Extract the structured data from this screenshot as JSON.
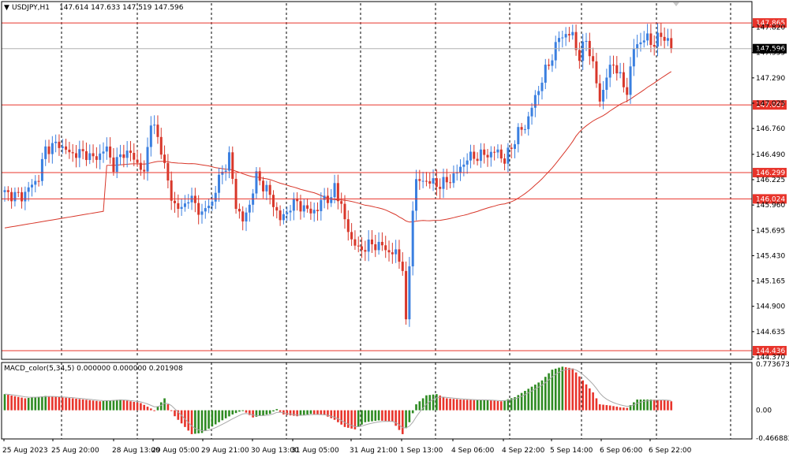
{
  "chart_data": [
    {
      "type": "candlestick",
      "symbol_header": "USDJPY,H1",
      "ohlc_header": "147.614 147.633 147.519 147.596",
      "ylim": [
        144.37,
        147.94
      ],
      "y_ticks": [
        "147.820",
        "147.555",
        "147.290",
        "147.025",
        "146.760",
        "146.490",
        "146.225",
        "145.960",
        "145.695",
        "145.430",
        "145.165",
        "144.900",
        "144.635",
        "144.370"
      ],
      "x_labels": [
        "25 Aug 2023",
        "25 Aug 20:00",
        "28 Aug 13:00",
        "29 Aug 05:00",
        "29 Aug 21:00",
        "30 Aug 13:00",
        "31 Aug 05:00",
        "31 Aug 21:00",
        "1 Sep 13:00",
        "4 Sep 06:00",
        "4 Sep 22:00",
        "5 Sep 14:00",
        "6 Sep 06:00",
        "6 Sep 22:00"
      ],
      "horizontal_levels": [
        "147.865",
        "147.007",
        "146.299",
        "146.024",
        "144.436"
      ],
      "current_price": "147.596",
      "colors": {
        "bull": "#3a7fe0",
        "bear": "#d8372a",
        "level": "#e8342b",
        "ma": "#d8372a",
        "grid": "#000000"
      },
      "close_path": [
        [
          0,
          146.08
        ],
        [
          5,
          146.05
        ],
        [
          10,
          146.25
        ],
        [
          12,
          146.55
        ],
        [
          16,
          146.6
        ],
        [
          19,
          146.5
        ],
        [
          24,
          146.5
        ],
        [
          26,
          146.44
        ],
        [
          30,
          146.55
        ],
        [
          32,
          146.36
        ],
        [
          35,
          146.52
        ],
        [
          38,
          146.46
        ],
        [
          41,
          146.28
        ],
        [
          43,
          146.85
        ],
        [
          46,
          146.55
        ],
        [
          49,
          146.02
        ],
        [
          52,
          145.9
        ],
        [
          54,
          146.05
        ],
        [
          58,
          145.87
        ],
        [
          61,
          146.0
        ],
        [
          63,
          146.23
        ],
        [
          66,
          146.46
        ],
        [
          68,
          145.97
        ],
        [
          70,
          145.78
        ],
        [
          72,
          145.97
        ],
        [
          74,
          146.26
        ],
        [
          77,
          146.12
        ],
        [
          79,
          145.98
        ],
        [
          81,
          145.8
        ],
        [
          84,
          145.94
        ],
        [
          86,
          146.0
        ],
        [
          88,
          145.91
        ],
        [
          92,
          145.9
        ],
        [
          94,
          146.07
        ],
        [
          96,
          145.98
        ],
        [
          97,
          146.19
        ],
        [
          100,
          145.8
        ],
        [
          102,
          145.6
        ],
        [
          104,
          145.49
        ],
        [
          108,
          145.55
        ],
        [
          111,
          145.53
        ],
        [
          113,
          145.47
        ],
        [
          115,
          145.45
        ],
        [
          117,
          145.32
        ],
        [
          118,
          144.7
        ],
        [
          119,
          145.32
        ],
        [
          120,
          145.95
        ],
        [
          121,
          146.2
        ],
        [
          124,
          146.22
        ],
        [
          127,
          146.17
        ],
        [
          130,
          146.2
        ],
        [
          133,
          146.3
        ],
        [
          136,
          146.45
        ],
        [
          140,
          146.48
        ],
        [
          143,
          146.5
        ],
        [
          145,
          146.52
        ],
        [
          147,
          146.42
        ],
        [
          149,
          146.57
        ],
        [
          151,
          146.72
        ],
        [
          153,
          146.78
        ],
        [
          155,
          146.98
        ],
        [
          157,
          147.18
        ],
        [
          159,
          147.36
        ],
        [
          161,
          147.52
        ],
        [
          163,
          147.71
        ],
        [
          165,
          147.75
        ],
        [
          167,
          147.73
        ],
        [
          169,
          147.5
        ],
        [
          171,
          147.7
        ],
        [
          173,
          147.42
        ],
        [
          175,
          147.05
        ],
        [
          177,
          147.3
        ],
        [
          179,
          147.46
        ],
        [
          181,
          147.28
        ],
        [
          183,
          147.15
        ],
        [
          185,
          147.6
        ],
        [
          187,
          147.68
        ],
        [
          189,
          147.7
        ],
        [
          191,
          147.65
        ],
        [
          193,
          147.74
        ],
        [
          195,
          147.68
        ],
        [
          196,
          147.6
        ]
      ],
      "macd_ylim": [
        -0.466883,
        0.773673
      ],
      "macd_ticks": [
        "0.773673",
        "0.00",
        "-0.466883"
      ],
      "macd_header": "MACD_color(5,34,5) 0.000000 0.000000 0.201908",
      "macd_path": [
        [
          0,
          0.27
        ],
        [
          6,
          0.2
        ],
        [
          12,
          0.24
        ],
        [
          20,
          0.2
        ],
        [
          28,
          0.15
        ],
        [
          34,
          0.18
        ],
        [
          40,
          0.12
        ],
        [
          44,
          0.0
        ],
        [
          47,
          0.2
        ],
        [
          50,
          -0.1
        ],
        [
          55,
          -0.4
        ],
        [
          58,
          -0.38
        ],
        [
          63,
          -0.2
        ],
        [
          67,
          -0.07
        ],
        [
          70,
          0.0
        ],
        [
          73,
          -0.12
        ],
        [
          78,
          -0.06
        ],
        [
          80,
          0.02
        ],
        [
          82,
          -0.07
        ],
        [
          86,
          -0.1
        ],
        [
          90,
          -0.06
        ],
        [
          94,
          -0.08
        ],
        [
          97,
          -0.16
        ],
        [
          100,
          -0.28
        ],
        [
          103,
          -0.32
        ],
        [
          106,
          -0.2
        ],
        [
          110,
          -0.17
        ],
        [
          114,
          -0.19
        ],
        [
          117,
          -0.4
        ],
        [
          119,
          -0.2
        ],
        [
          121,
          0.1
        ],
        [
          124,
          0.25
        ],
        [
          127,
          0.27
        ],
        [
          130,
          0.2
        ],
        [
          134,
          0.18
        ],
        [
          138,
          0.17
        ],
        [
          142,
          0.17
        ],
        [
          146,
          0.15
        ],
        [
          150,
          0.22
        ],
        [
          154,
          0.36
        ],
        [
          158,
          0.5
        ],
        [
          161,
          0.68
        ],
        [
          164,
          0.73
        ],
        [
          167,
          0.7
        ],
        [
          170,
          0.5
        ],
        [
          173,
          0.3
        ],
        [
          175,
          0.1
        ],
        [
          178,
          0.08
        ],
        [
          181,
          0.05
        ],
        [
          183,
          0.04
        ],
        [
          186,
          0.18
        ],
        [
          190,
          0.18
        ],
        [
          194,
          0.17
        ],
        [
          196,
          0.15
        ]
      ]
    }
  ]
}
